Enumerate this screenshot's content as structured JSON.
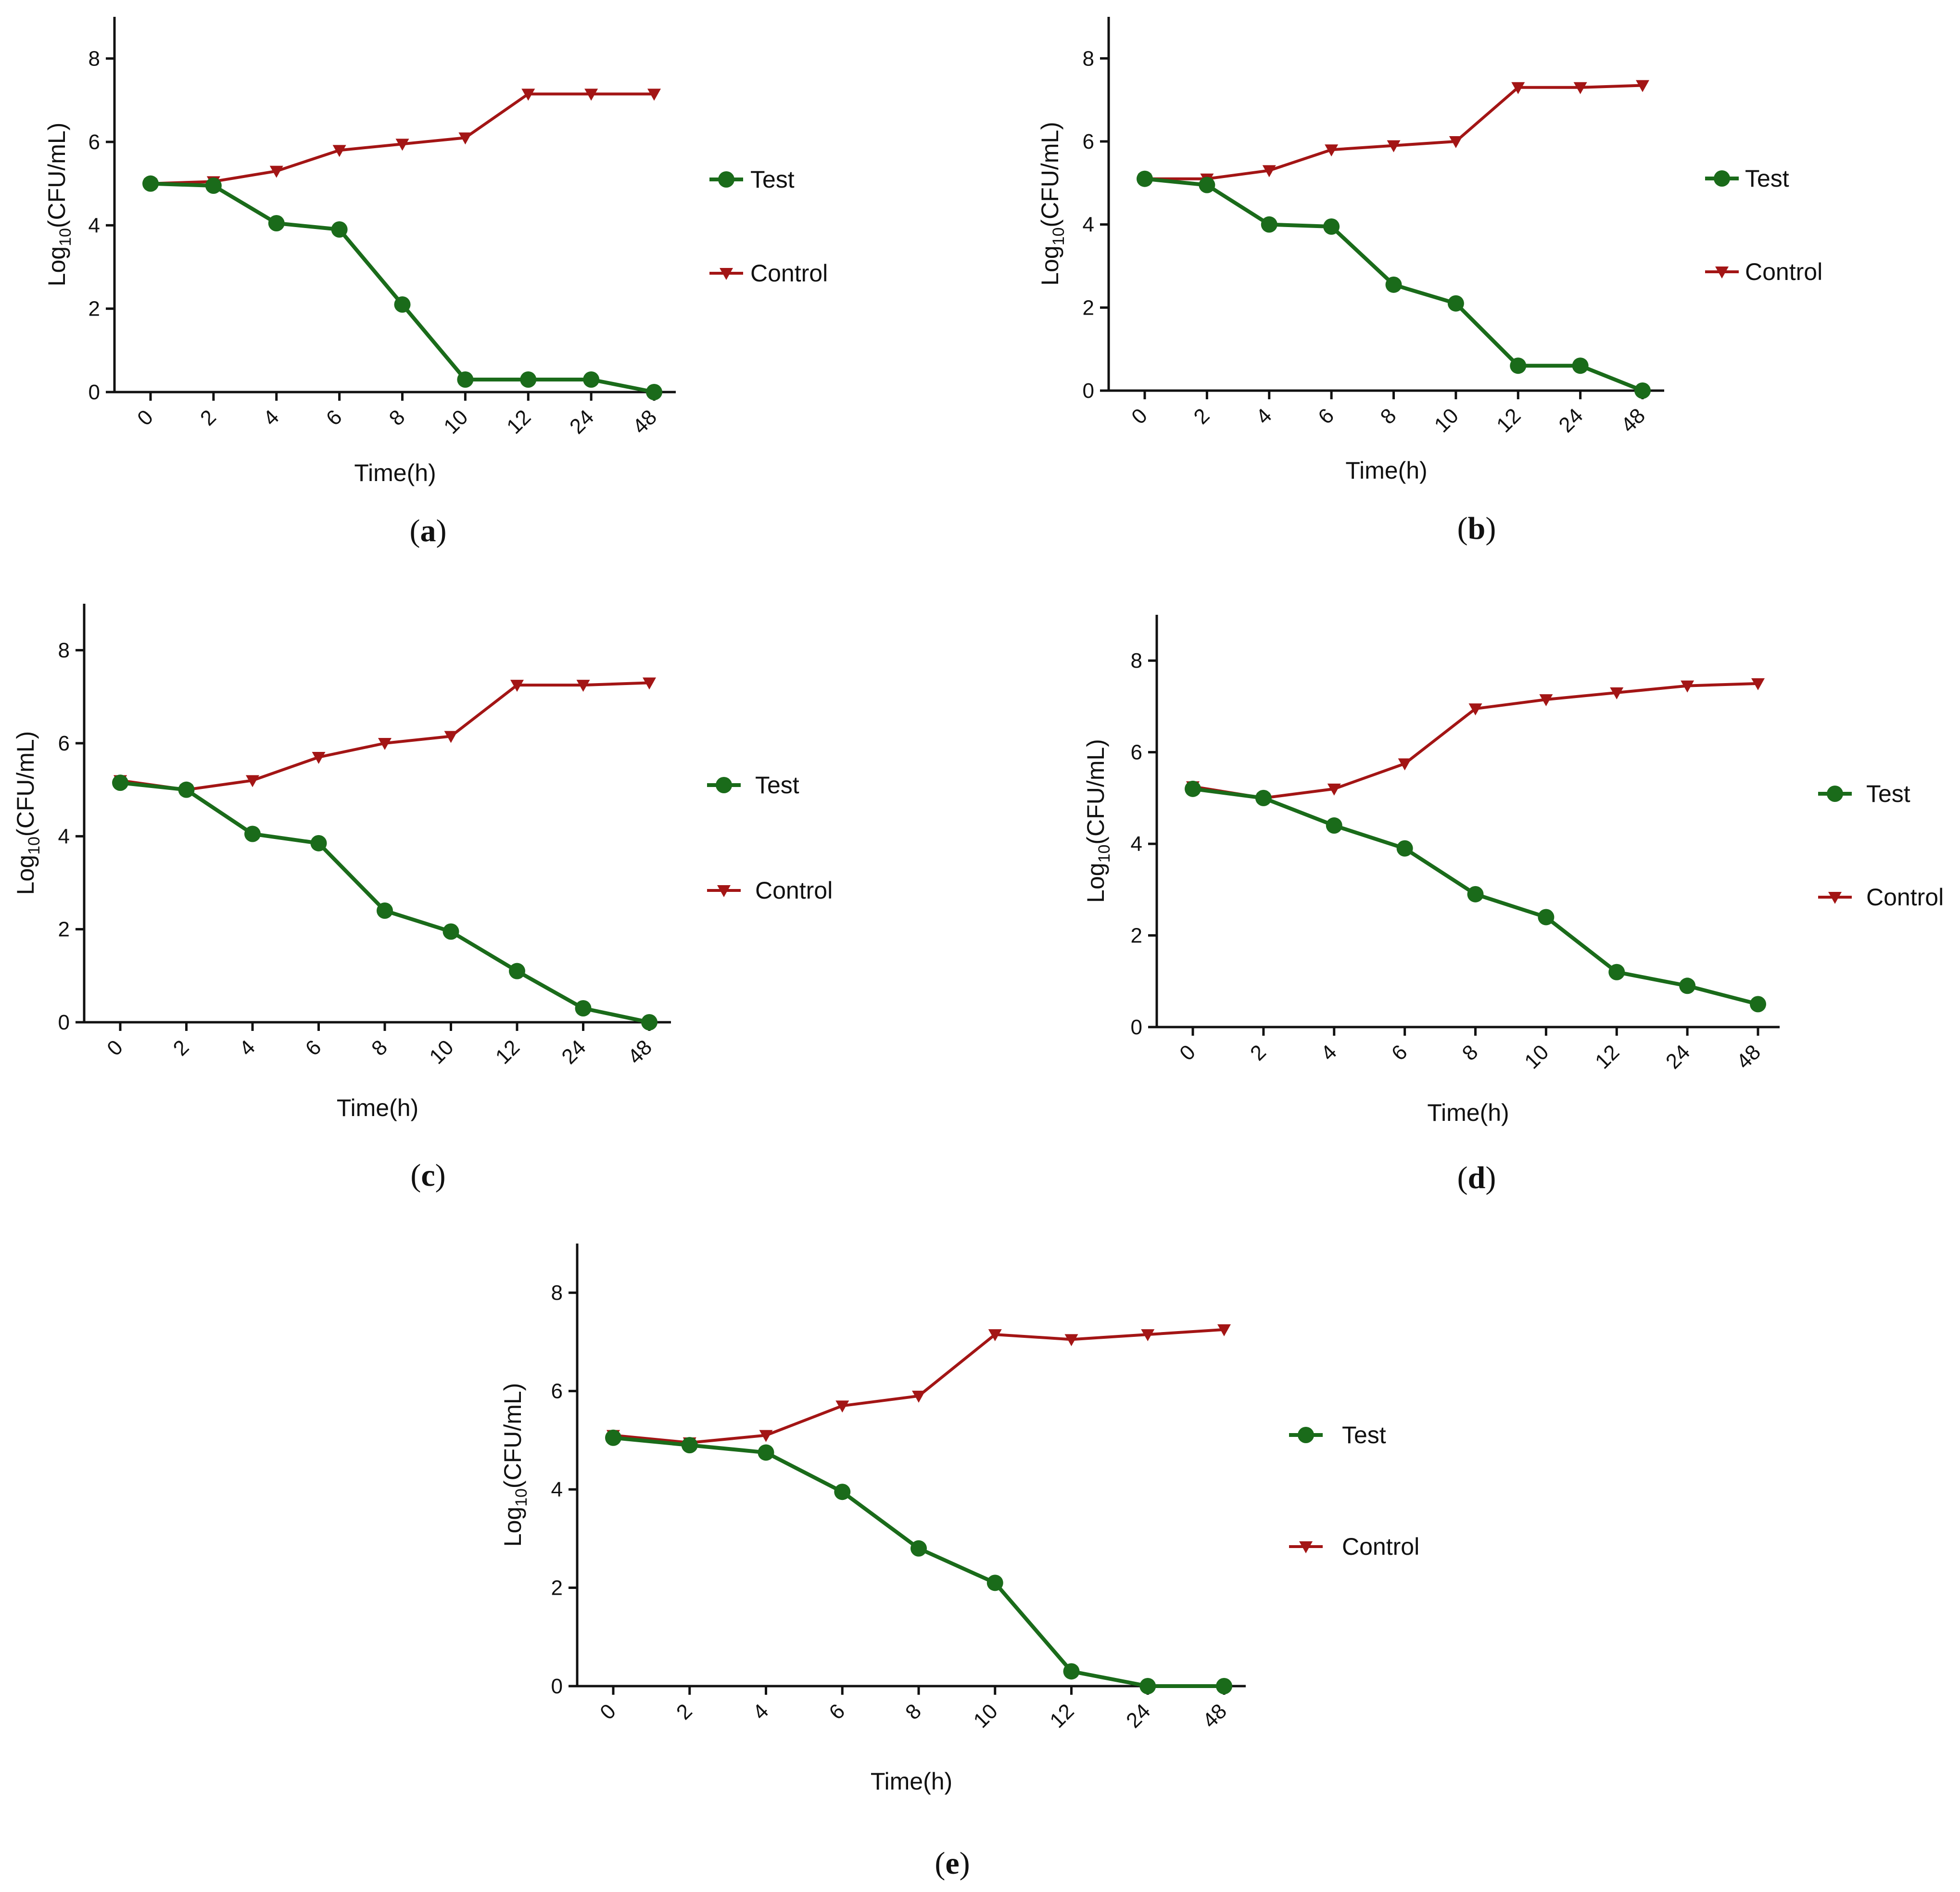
{
  "colors": {
    "test": "#1a6b1a",
    "control": "#a31515",
    "axis": "#111111"
  },
  "chart_data": [
    {
      "panel": "a",
      "caption": "(a)",
      "type": "line",
      "xlabel": "Time(h)",
      "ylabel": "Log10(CFU/mL)",
      "ylabel_base": "Log",
      "ylabel_sub": "10",
      "ylabel_rest": "(CFU/mL)",
      "categories": [
        "0",
        "2",
        "4",
        "6",
        "8",
        "10",
        "12",
        "24",
        "48"
      ],
      "yticks": [
        "0",
        "2",
        "4",
        "6",
        "8"
      ],
      "ylim": [
        0,
        9
      ],
      "series": [
        {
          "name": "Test",
          "marker": "circle",
          "values": [
            5.0,
            4.95,
            4.05,
            3.9,
            2.1,
            0.3,
            0.3,
            0.3,
            0.0
          ]
        },
        {
          "name": "Control",
          "marker": "triangle-down",
          "values": [
            5.0,
            5.05,
            5.3,
            5.8,
            5.95,
            6.1,
            7.15,
            7.15,
            7.15
          ]
        }
      ]
    },
    {
      "panel": "b",
      "caption": "(b)",
      "type": "line",
      "xlabel": "Time(h)",
      "ylabel": "Log10(CFU/mL)",
      "ylabel_base": "Log",
      "ylabel_sub": "10",
      "ylabel_rest": "(CFU/mL)",
      "categories": [
        "0",
        "2",
        "4",
        "6",
        "8",
        "10",
        "12",
        "24",
        "48"
      ],
      "yticks": [
        "0",
        "2",
        "4",
        "6",
        "8"
      ],
      "ylim": [
        0,
        9
      ],
      "series": [
        {
          "name": "Test",
          "marker": "circle",
          "values": [
            5.1,
            4.95,
            4.0,
            3.95,
            2.55,
            2.1,
            0.6,
            0.6,
            0.0
          ]
        },
        {
          "name": "Control",
          "marker": "triangle-down",
          "values": [
            5.1,
            5.1,
            5.3,
            5.8,
            5.9,
            6.0,
            7.3,
            7.3,
            7.35
          ]
        }
      ]
    },
    {
      "panel": "c",
      "caption": "(c)",
      "type": "line",
      "xlabel": "Time(h)",
      "ylabel": "Log10(CFU/mL)",
      "ylabel_base": "Log",
      "ylabel_sub": "10",
      "ylabel_rest": "(CFU/mL)",
      "categories": [
        "0",
        "2",
        "4",
        "6",
        "8",
        "10",
        "12",
        "24",
        "48"
      ],
      "yticks": [
        "0",
        "2",
        "4",
        "6",
        "8"
      ],
      "ylim": [
        0,
        9
      ],
      "series": [
        {
          "name": "Test",
          "marker": "circle",
          "values": [
            5.15,
            5.0,
            4.05,
            3.85,
            2.4,
            1.95,
            1.1,
            0.3,
            0.0
          ]
        },
        {
          "name": "Control",
          "marker": "triangle-down",
          "values": [
            5.2,
            5.0,
            5.2,
            5.7,
            6.0,
            6.15,
            7.25,
            7.25,
            7.3
          ]
        }
      ]
    },
    {
      "panel": "d",
      "caption": "(d)",
      "type": "line",
      "xlabel": "Time(h)",
      "ylabel": "Log10(CFU/mL)",
      "ylabel_base": "Log",
      "ylabel_sub": "10",
      "ylabel_rest": "(CFU/mL)",
      "categories": [
        "0",
        "2",
        "4",
        "6",
        "8",
        "10",
        "12",
        "24",
        "48"
      ],
      "yticks": [
        "0",
        "2",
        "4",
        "6",
        "8"
      ],
      "ylim": [
        0,
        9
      ],
      "series": [
        {
          "name": "Test",
          "marker": "circle",
          "values": [
            5.2,
            5.0,
            4.4,
            3.9,
            2.9,
            2.4,
            1.2,
            0.9,
            0.5
          ]
        },
        {
          "name": "Control",
          "marker": "triangle-down",
          "values": [
            5.25,
            5.0,
            5.2,
            5.75,
            6.95,
            7.15,
            7.3,
            7.45,
            7.5
          ]
        }
      ]
    },
    {
      "panel": "e",
      "caption": "(e)",
      "type": "line",
      "xlabel": "Time(h)",
      "ylabel": "Log10(CFU/mL)",
      "ylabel_base": "Log",
      "ylabel_sub": "10",
      "ylabel_rest": "(CFU/mL)",
      "categories": [
        "0",
        "2",
        "4",
        "6",
        "8",
        "10",
        "12",
        "24",
        "48"
      ],
      "yticks": [
        "0",
        "2",
        "4",
        "6",
        "8"
      ],
      "ylim": [
        0,
        9
      ],
      "series": [
        {
          "name": "Test",
          "marker": "circle",
          "values": [
            5.05,
            4.9,
            4.75,
            3.95,
            2.8,
            2.1,
            0.3,
            0.0,
            0.0
          ]
        },
        {
          "name": "Control",
          "marker": "triangle-down",
          "values": [
            5.1,
            4.95,
            5.1,
            5.7,
            5.9,
            7.15,
            7.05,
            7.15,
            7.25
          ]
        }
      ]
    }
  ]
}
